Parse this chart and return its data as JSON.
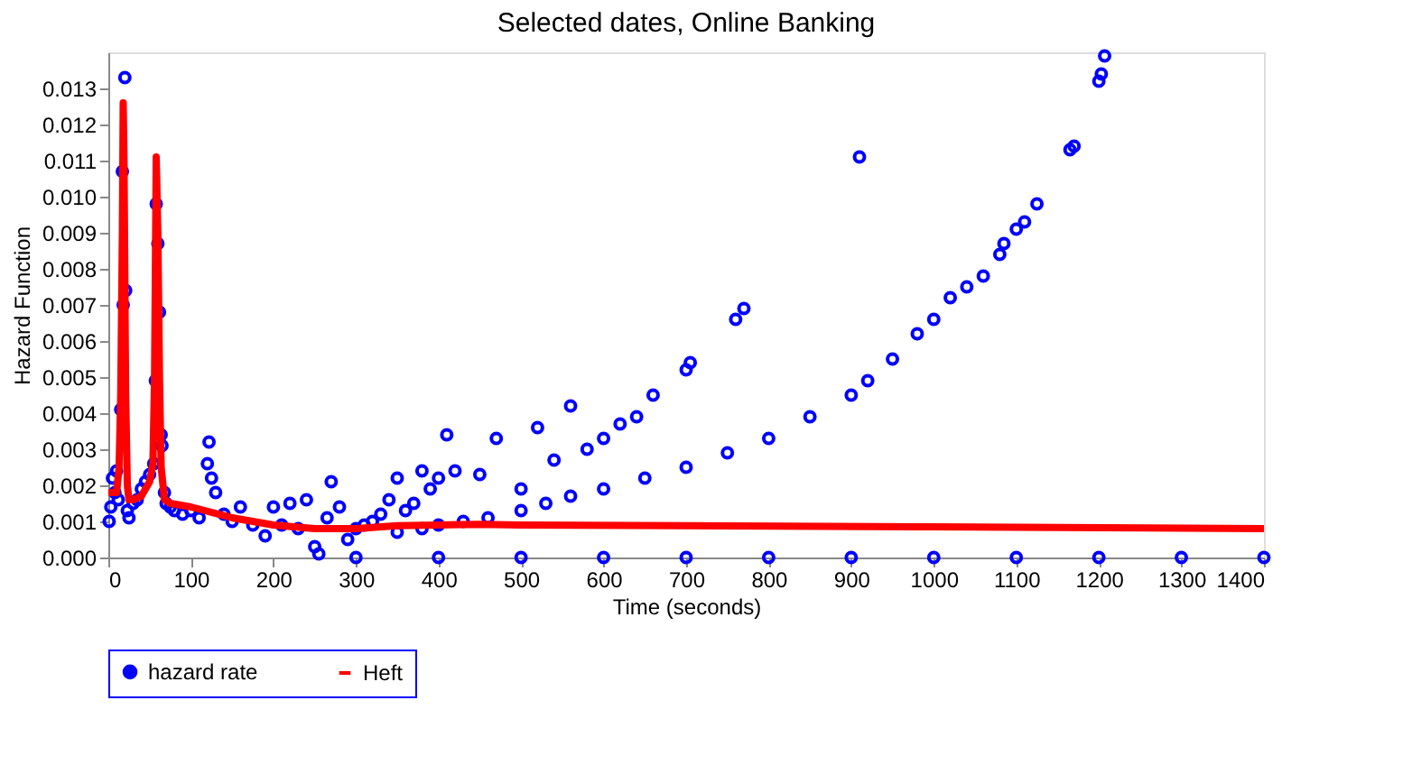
{
  "chart_data": {
    "type": "scatter",
    "title": "Selected dates, Online Banking",
    "xlabel": "Time (seconds)",
    "ylabel": "Hazard Function",
    "xlim": [
      0,
      1400
    ],
    "xticks": [
      0,
      100,
      200,
      300,
      400,
      500,
      600,
      700,
      800,
      900,
      1000,
      1100,
      1200,
      1300,
      1400
    ],
    "line_style": "solid",
    "ylim": [
      0,
      0.014
    ],
    "yticks": [
      {
        "value": 0,
        "label": "0.000"
      },
      0.001,
      0.002,
      0.003,
      0.004,
      0.005,
      0.006,
      0.007,
      0.008,
      0.009,
      {
        "value": 0.01,
        "label": "0.010"
      },
      0.011,
      0.012,
      0.013
    ],
    "grid": false,
    "legend": "bottom",
    "series": [
      {
        "name": "hazard rate",
        "type": "scatter",
        "marker": "circle",
        "color": "#0000ff",
        "x": [
          1,
          3,
          5,
          8,
          10,
          12,
          15,
          17,
          18,
          20,
          21,
          23,
          25,
          30,
          35,
          40,
          45,
          50,
          55,
          57,
          58,
          60,
          62,
          64,
          65,
          68,
          70,
          75,
          80,
          90,
          100,
          110,
          120,
          122,
          125,
          130,
          140,
          150,
          160,
          175,
          190,
          200,
          210,
          220,
          230,
          240,
          250,
          255,
          265,
          270,
          280,
          290,
          300,
          310,
          320,
          330,
          340,
          350,
          360,
          370,
          380,
          390,
          400,
          410,
          420,
          450,
          470,
          500,
          520,
          540,
          560,
          580,
          600,
          620,
          640,
          660,
          700,
          705,
          760,
          770,
          350,
          380,
          400,
          430,
          460,
          500,
          530,
          560,
          600,
          650,
          700,
          750,
          800,
          850,
          900,
          920,
          950,
          980,
          1000,
          1020,
          1040,
          1060,
          1080,
          1085,
          1100,
          1110,
          1125,
          1165,
          1170,
          1200,
          1203,
          1207,
          910,
          300,
          400,
          500,
          600,
          700,
          800,
          900,
          1000,
          1100,
          1200,
          1300,
          1400
        ],
        "values": [
          0.001,
          0.0014,
          0.0022,
          0.0018,
          0.0024,
          0.0016,
          0.0041,
          0.0107,
          0.007,
          0.0133,
          0.0074,
          0.0013,
          0.0011,
          0.0015,
          0.0016,
          0.0019,
          0.0021,
          0.0023,
          0.0026,
          0.0049,
          0.0098,
          0.0087,
          0.0068,
          0.0034,
          0.0031,
          0.0018,
          0.0015,
          0.0014,
          0.0013,
          0.0012,
          0.0013,
          0.0011,
          0.0026,
          0.0032,
          0.0022,
          0.0018,
          0.0012,
          0.001,
          0.0014,
          0.0009,
          0.0006,
          0.0014,
          0.0009,
          0.0015,
          0.0008,
          0.0016,
          0.0003,
          0.0001,
          0.0011,
          0.0021,
          0.0014,
          0.0005,
          0.0008,
          0.0009,
          0.001,
          0.0012,
          0.0016,
          0.0022,
          0.0013,
          0.0015,
          0.0024,
          0.0019,
          0.0022,
          0.0034,
          0.0024,
          0.0023,
          0.0033,
          0.0019,
          0.0036,
          0.0027,
          0.0042,
          0.003,
          0.0033,
          0.0037,
          0.0039,
          0.0045,
          0.0052,
          0.0054,
          0.0066,
          0.0069,
          0.0007,
          0.0008,
          0.0009,
          0.001,
          0.0011,
          0.0013,
          0.0015,
          0.0017,
          0.0019,
          0.0022,
          0.0025,
          0.0029,
          0.0033,
          0.0039,
          0.0045,
          0.0049,
          0.0055,
          0.0062,
          0.0066,
          0.0072,
          0.0075,
          0.0078,
          0.0084,
          0.0087,
          0.0091,
          0.0093,
          0.0098,
          0.0113,
          0.0114,
          0.0132,
          0.0134,
          0.0139,
          0.0111,
          0.0,
          0.0,
          0.0,
          0.0,
          0.0,
          0.0,
          0.0,
          0.0,
          0.0,
          0.0,
          0.0,
          0.0
        ]
      },
      {
        "name": "Heft",
        "type": "line",
        "color": "#ff0000",
        "x": [
          0,
          10,
          13,
          15,
          17,
          18,
          19,
          21,
          23,
          25,
          30,
          40,
          50,
          54,
          56,
          58,
          60,
          62,
          64,
          68,
          75,
          100,
          150,
          200,
          250,
          300,
          350,
          400,
          450,
          500,
          700,
          1000,
          1400
        ],
        "values": [
          0.0018,
          0.0018,
          0.0025,
          0.0045,
          0.009,
          0.0126,
          0.011,
          0.0045,
          0.002,
          0.0016,
          0.0016,
          0.0017,
          0.0021,
          0.0026,
          0.005,
          0.0111,
          0.009,
          0.005,
          0.0025,
          0.0016,
          0.0015,
          0.0014,
          0.0011,
          0.0009,
          0.0008,
          0.0008,
          0.00088,
          0.0009,
          0.00092,
          0.0009,
          0.00088,
          0.00085,
          0.0008
        ]
      }
    ]
  }
}
